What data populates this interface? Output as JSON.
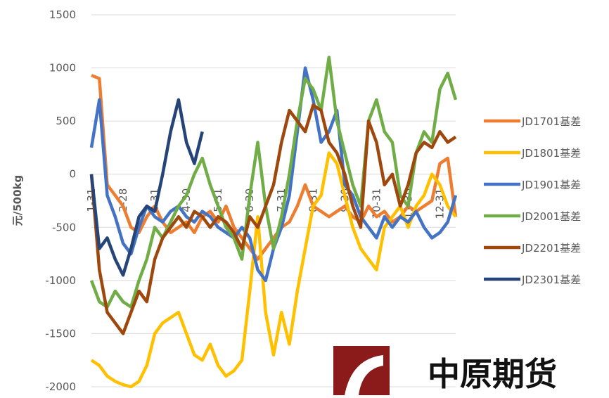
{
  "chart_data": {
    "type": "line",
    "y_label": "元/500kg",
    "watermark": "中原期货",
    "categories": [
      "1-31",
      null,
      null,
      null,
      "2-28",
      null,
      null,
      null,
      "3-31",
      null,
      null,
      null,
      "4-30",
      null,
      null,
      null,
      "5-31",
      null,
      null,
      null,
      "6-30",
      null,
      null,
      null,
      "7-31",
      null,
      null,
      null,
      "8-31",
      null,
      null,
      null,
      "9-30",
      null,
      null,
      null,
      "10-31",
      null,
      null,
      null,
      "11-30",
      null,
      null,
      null,
      "12-31",
      null,
      null
    ],
    "ylim": [
      -2000,
      1500
    ],
    "yticks": [
      -2000,
      -1500,
      -1000,
      -500,
      0,
      500,
      1000,
      1500
    ],
    "grid": true,
    "legend": "right",
    "series": [
      {
        "name": "JD1701基差",
        "color": "#ed7d31",
        "values": [
          930,
          900,
          -100,
          -200,
          -300,
          -500,
          -550,
          -400,
          -300,
          -450,
          -550,
          -500,
          -450,
          -550,
          -400,
          -350,
          -450,
          -300,
          -500,
          -600,
          -700,
          -800,
          -700,
          -600,
          -500,
          -450,
          -300,
          -100,
          -300,
          -350,
          -400,
          -350,
          -300,
          -400,
          -450,
          -300,
          -400,
          -350,
          -450,
          -400,
          -300,
          -350,
          -300,
          -250,
          100,
          150,
          -400
        ]
      },
      {
        "name": "JD1801基差",
        "color": "#ffc000",
        "values": [
          -1750,
          -1800,
          -1900,
          -1950,
          -1980,
          -2000,
          -1950,
          -1800,
          -1500,
          -1400,
          -1350,
          -1300,
          -1500,
          -1700,
          -1750,
          -1600,
          -1800,
          -1900,
          -1850,
          -1750,
          -1100,
          -400,
          -1300,
          -1700,
          -1300,
          -1600,
          -1100,
          -700,
          -300,
          -200,
          200,
          100,
          -200,
          -500,
          -700,
          -800,
          -900,
          -500,
          -400,
          -300,
          -500,
          -300,
          -200,
          0,
          -100,
          -300,
          -400
        ]
      },
      {
        "name": "JD1901基差",
        "color": "#4472c4",
        "values": [
          250,
          700,
          -200,
          -400,
          -650,
          -750,
          -500,
          -300,
          -400,
          -450,
          -350,
          -300,
          -400,
          -450,
          -350,
          -400,
          -500,
          -550,
          -600,
          -500,
          -600,
          -900,
          -1000,
          -700,
          -500,
          -200,
          400,
          1000,
          700,
          300,
          400,
          600,
          -100,
          -200,
          -400,
          -500,
          -600,
          -400,
          -500,
          -400,
          -450,
          -350,
          -500,
          -600,
          -550,
          -450,
          -200
        ]
      },
      {
        "name": "JD2001基差",
        "color": "#70ad47",
        "values": [
          -1000,
          -1200,
          -1250,
          -1100,
          -1200,
          -1250,
          -1000,
          -800,
          -500,
          -600,
          -450,
          -300,
          -200,
          0,
          150,
          -100,
          -300,
          -500,
          -600,
          -800,
          -200,
          300,
          -300,
          -700,
          -400,
          0,
          500,
          900,
          800,
          600,
          1100,
          500,
          200,
          -100,
          -300,
          500,
          700,
          400,
          300,
          -200,
          -300,
          200,
          400,
          300,
          800,
          950,
          700
        ]
      },
      {
        "name": "JD2201基差",
        "color": "#9e480e",
        "values": [
          0,
          -900,
          -1300,
          -1400,
          -1500,
          -1300,
          -1100,
          -1200,
          -800,
          -600,
          -500,
          -400,
          -500,
          -350,
          -400,
          -500,
          -400,
          -450,
          -550,
          -700,
          -400,
          -500,
          -300,
          -100,
          300,
          600,
          500,
          400,
          650,
          600,
          300,
          200,
          0,
          -300,
          -500,
          500,
          300,
          -100,
          0,
          -300,
          -100,
          200,
          300,
          250,
          400,
          300,
          350
        ]
      },
      {
        "name": "JD2301基差",
        "color": "#264478",
        "values": [
          0,
          -700,
          -600,
          -800,
          -950,
          -700,
          -400,
          -300,
          -350,
          0,
          400,
          700,
          300,
          100,
          400,
          null,
          null,
          null,
          null,
          null,
          null,
          null,
          null,
          null,
          null,
          null,
          null,
          null,
          null,
          null,
          null,
          null,
          null,
          null,
          null,
          null,
          null,
          null,
          null,
          null,
          null,
          null,
          null,
          null,
          null,
          null,
          null
        ]
      }
    ]
  }
}
